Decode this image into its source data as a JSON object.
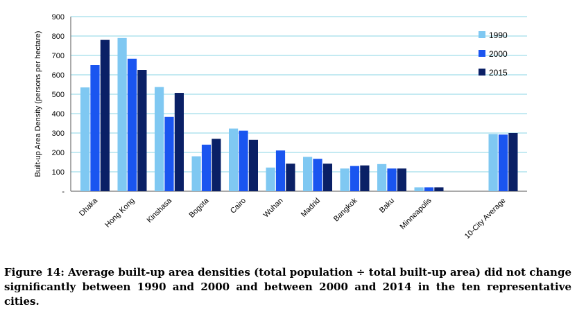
{
  "chart_data": {
    "type": "bar",
    "title": "",
    "ylabel": "Built-up Area Density (persons per hectare)",
    "xlabel": "",
    "ylim": [
      0,
      900
    ],
    "yticks": [
      {
        "value": 0,
        "label": "-"
      },
      {
        "value": 100,
        "label": "100"
      },
      {
        "value": 200,
        "label": "200"
      },
      {
        "value": 300,
        "label": "300"
      },
      {
        "value": 400,
        "label": "400"
      },
      {
        "value": 500,
        "label": "500"
      },
      {
        "value": 600,
        "label": "600"
      },
      {
        "value": 700,
        "label": "700"
      },
      {
        "value": 800,
        "label": "800"
      },
      {
        "value": 900,
        "label": "900"
      }
    ],
    "grid": true,
    "legend_position": "top-right",
    "categories": [
      "Dhaka",
      "Hong Kong",
      "Kinshasa",
      "Bogota",
      "Cairo",
      "Wuhan",
      "Madrid",
      "Bangkok",
      "Baku",
      "Minneapolis",
      "",
      "10-City Average"
    ],
    "series": [
      {
        "name": "1990",
        "color": "#7fc8f2",
        "values": [
          535,
          790,
          537,
          180,
          323,
          122,
          177,
          117,
          140,
          20,
          null,
          295
        ]
      },
      {
        "name": "2000",
        "color": "#1a55f0",
        "values": [
          650,
          683,
          383,
          240,
          312,
          210,
          167,
          130,
          117,
          20,
          null,
          292
        ]
      },
      {
        "name": "2015",
        "color": "#0a2066",
        "values": [
          780,
          625,
          507,
          270,
          265,
          142,
          142,
          133,
          117,
          20,
          null,
          300
        ]
      }
    ]
  },
  "colors": {
    "gridline": "#88d4e6",
    "axis": "#555555"
  },
  "caption": "Figure 14: Average built-up area densities (total population ÷ total built-up area) did not change significantly between 1990 and 2000 and between 2000 and 2014 in the ten representative cities."
}
